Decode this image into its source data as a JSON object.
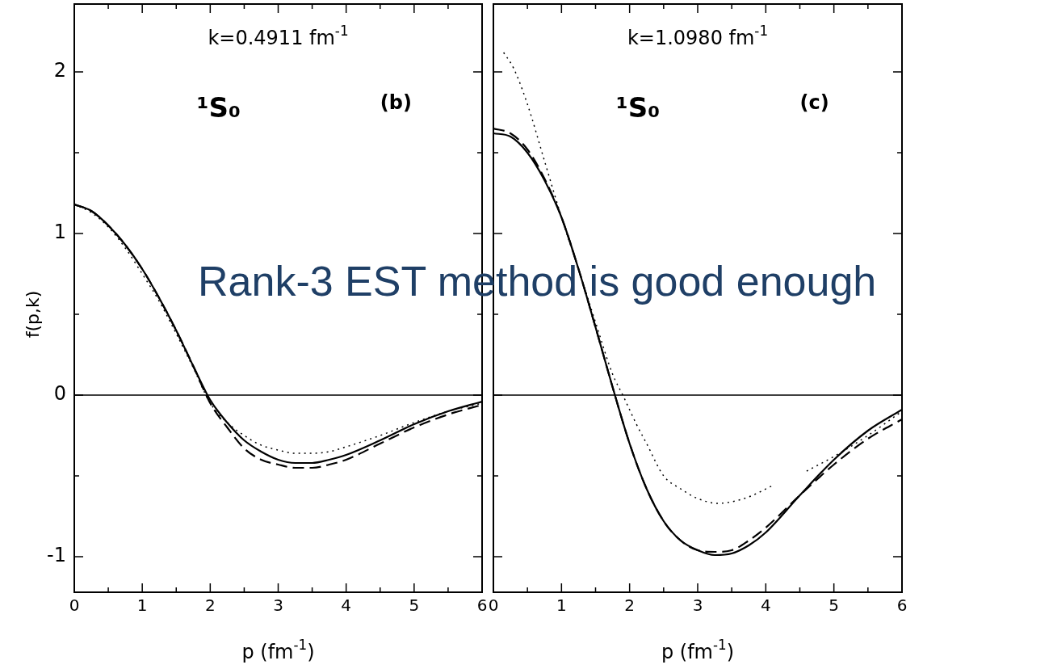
{
  "chart_data": [
    {
      "type": "line",
      "title": "k=0.4911 fm$^{-1}$",
      "xlabel": "p (fm$^{-1}$)",
      "ylabel": "f(p,k)",
      "annotations": [
        "¹S₀",
        "(b)",
        "Rank-3 EST method is good enough"
      ],
      "xlim": [
        0,
        6
      ],
      "xticks": [
        0,
        {
          "value": 0.5,
          "label": null
        },
        1,
        {
          "value": 1.5,
          "label": null
        },
        2,
        {
          "value": 2.5,
          "label": null
        },
        3,
        {
          "value": 3.5,
          "label": null
        },
        4,
        {
          "value": 4.5,
          "label": null
        },
        5,
        {
          "value": 5.5,
          "label": null
        },
        6
      ],
      "ylim": [
        -1.22,
        2.42
      ],
      "yticks": [
        {
          "value": -1,
          "label": "-1"
        },
        {
          "value": -0.5,
          "label": null
        },
        0,
        {
          "value": 0.5,
          "label": null
        },
        1,
        {
          "value": 1.5,
          "label": null
        },
        2
      ],
      "marker": "none",
      "legend": false,
      "grid": false,
      "ref_lines": [
        {
          "axis": "y",
          "value": 0,
          "color": "#000000",
          "line_style": "solid"
        }
      ],
      "series": [
        {
          "color": "#000000",
          "line_style": "solid",
          "x": [
            0,
            0.25,
            0.5,
            0.75,
            1,
            1.25,
            1.5,
            1.75,
            2,
            2.25,
            2.5,
            2.75,
            3,
            3.25,
            3.5,
            3.75,
            4,
            4.5,
            5,
            5.5,
            6
          ],
          "values": [
            1.18,
            1.14,
            1.05,
            0.93,
            0.78,
            0.6,
            0.4,
            0.18,
            -0.03,
            -0.17,
            -0.28,
            -0.35,
            -0.4,
            -0.42,
            -0.42,
            -0.4,
            -0.37,
            -0.28,
            -0.18,
            -0.1,
            -0.04
          ]
        },
        {
          "color": "#000000",
          "line_style": "dashed",
          "x": [
            0,
            0.25,
            0.5,
            0.75,
            1,
            1.25,
            1.5,
            1.75,
            2,
            2.25,
            2.5,
            2.75,
            3,
            3.25,
            3.5,
            3.75,
            4,
            4.5,
            5,
            5.5,
            6
          ],
          "values": [
            1.18,
            1.14,
            1.05,
            0.93,
            0.78,
            0.6,
            0.4,
            0.18,
            -0.05,
            -0.2,
            -0.33,
            -0.4,
            -0.43,
            -0.45,
            -0.45,
            -0.43,
            -0.4,
            -0.3,
            -0.2,
            -0.12,
            -0.06
          ]
        },
        {
          "color": "#000000",
          "line_style": "dotted",
          "x": [
            0,
            0.25,
            0.5,
            0.75,
            1,
            1.25,
            1.5,
            1.75,
            2,
            2.25,
            2.5,
            2.75,
            3,
            3.25,
            3.5,
            3.75,
            4,
            4.5,
            5,
            5.5,
            6
          ],
          "values": [
            1.18,
            1.13,
            1.04,
            0.91,
            0.75,
            0.58,
            0.38,
            0.17,
            -0.05,
            -0.17,
            -0.25,
            -0.31,
            -0.34,
            -0.36,
            -0.36,
            -0.35,
            -0.32,
            -0.25,
            -0.17,
            -0.1,
            -0.05
          ]
        }
      ]
    },
    {
      "type": "line",
      "title": "k=1.0980 fm$^{-1}$",
      "xlabel": "p (fm$^{-1}$)",
      "annotations": [
        "¹S₀",
        "(c)"
      ],
      "xlim": [
        0,
        6
      ],
      "xticks": [
        0,
        {
          "value": 0.5,
          "label": null
        },
        1,
        {
          "value": 1.5,
          "label": null
        },
        2,
        {
          "value": 2.5,
          "label": null
        },
        3,
        {
          "value": 3.5,
          "label": null
        },
        4,
        {
          "value": 4.5,
          "label": null
        },
        5,
        {
          "value": 5.5,
          "label": null
        },
        6
      ],
      "ylim": [
        -1.22,
        2.42
      ],
      "yticks": [
        -1,
        {
          "value": -0.5,
          "label": null
        },
        0,
        {
          "value": 0.5,
          "label": null
        },
        1,
        {
          "value": 1.5,
          "label": null
        },
        2
      ],
      "tick_labels": "x",
      "marker": "none",
      "legend": false,
      "grid": false,
      "ref_lines": [
        {
          "axis": "y",
          "value": 0,
          "color": "#000000",
          "line_style": "solid"
        }
      ],
      "series": [
        {
          "color": "#000000",
          "line_style": "solid",
          "x": [
            0,
            0.25,
            0.5,
            0.75,
            1,
            1.25,
            1.5,
            1.75,
            2,
            2.25,
            2.5,
            2.75,
            3,
            3.25,
            3.5,
            3.75,
            4,
            4.5,
            5,
            5.5,
            6
          ],
          "values": [
            1.62,
            1.6,
            1.5,
            1.33,
            1.1,
            0.78,
            0.42,
            0.05,
            -0.3,
            -0.58,
            -0.78,
            -0.9,
            -0.96,
            -0.99,
            -0.98,
            -0.93,
            -0.85,
            -0.62,
            -0.4,
            -0.22,
            -0.09
          ]
        },
        {
          "color": "#000000",
          "line_style": "dashed",
          "x": [
            0,
            0.25,
            0.5,
            0.75,
            1,
            1.25,
            1.5,
            1.75,
            2,
            2.25,
            2.5,
            2.75,
            3,
            3.25,
            3.5,
            3.75,
            4,
            4.5,
            5,
            5.5,
            6
          ],
          "values": [
            1.65,
            1.62,
            1.52,
            1.34,
            1.1,
            0.78,
            0.42,
            0.05,
            -0.3,
            -0.58,
            -0.78,
            -0.9,
            -0.96,
            -0.97,
            -0.96,
            -0.9,
            -0.82,
            -0.62,
            -0.43,
            -0.27,
            -0.15
          ]
        },
        {
          "color": "#000000",
          "line_style": "dotted",
          "x": [
            0.15,
            0.3,
            0.5,
            0.75,
            1,
            1.25,
            1.5,
            1.75,
            1.9,
            2.1,
            2.25,
            2.5,
            2.75,
            3,
            3.3,
            3.5,
            3.75,
            4.1,
            4.35,
            4.6,
            5,
            5.5,
            6
          ],
          "values": [
            2.12,
            2.02,
            1.8,
            1.45,
            1.1,
            0.78,
            0.45,
            0.13,
            0.0,
            -0.18,
            -0.3,
            -0.5,
            -0.58,
            -0.64,
            -0.67,
            -0.66,
            -0.63,
            -0.56,
            null,
            -0.47,
            -0.38,
            -0.25,
            -0.1
          ]
        }
      ]
    }
  ]
}
